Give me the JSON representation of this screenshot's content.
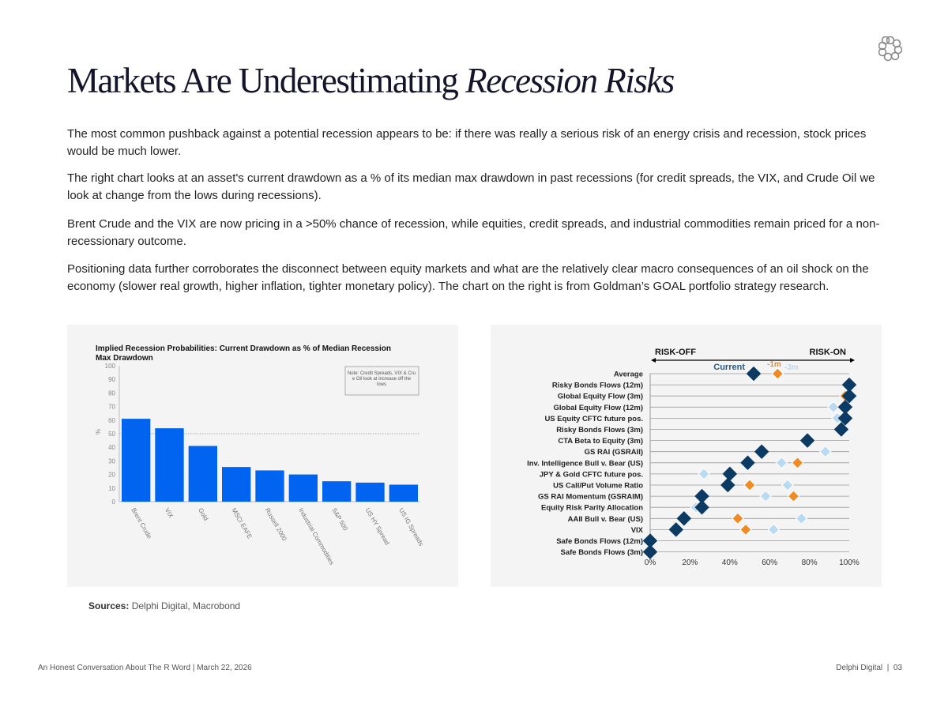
{
  "title": {
    "main": "Markets Are Underestimating",
    "italic": "Recession Risks"
  },
  "paragraphs": [
    "The most common pushback against a potential recession appears to be: if there was really a serious risk of an energy crisis and recession, stock prices would be much lower.",
    "The right chart looks at an asset's current drawdown as a % of its median max drawdown in past recessions (for credit spreads, the VIX, and Crude Oil we look at change from the lows during recessions).",
    "Brent Crude and the VIX are now pricing in a >50% chance of recession, while equities, credit spreads, and industrial commodities remain priced for a non-recessionary outcome.",
    "Positioning data further corroborates the disconnect between equity markets and what are the relatively clear macro consequences of an oil shock on the economy (slower real growth, higher inflation, tighter monetary policy).  The chart on the right is from Goldman’s GOAL portfolio strategy research."
  ],
  "sources": {
    "label": "Sources:",
    "text": " Delphi Digital, Macrobond"
  },
  "footer": {
    "left": "An Honest Conversation About The R Word | March 22, 2026",
    "brand": "Delphi Digital",
    "page": "03"
  },
  "logo_icon": "delphi-knot-logo",
  "chart_data": [
    {
      "type": "bar",
      "title": "Implied Recession Probabilities: Current Drawdown as % of Median Recession Max Drawdown",
      "ylabel": "%",
      "ylim": [
        0,
        100
      ],
      "yticks": [
        0,
        10,
        20,
        30,
        40,
        50,
        60,
        70,
        80,
        90,
        100
      ],
      "reference_line": 50,
      "note": "Note: Credit Spreads, VIX & Crude Oil look at increase off the lows",
      "categories": [
        "Brent Crude",
        "VIX",
        "Gold",
        "MSCI EAFE",
        "Russell 2000",
        "Industrial Commodities",
        "S&P 500",
        "US HY Spread",
        "US IG Spreads"
      ],
      "values": [
        61,
        54,
        41,
        25.5,
        23,
        20,
        15,
        14,
        12.5
      ],
      "color": "#0064f0"
    },
    {
      "type": "scatter",
      "left_label": "RISK-OFF",
      "right_label": "RISK-ON",
      "xlim": [
        0,
        100
      ],
      "xticks": [
        "0%",
        "20%",
        "40%",
        "60%",
        "80%",
        "100%"
      ],
      "categories": [
        "Average",
        "Risky Bonds Flows (12m)",
        "Global Equity Flow (3m)",
        "Global Equity Flow (12m)",
        "US Equity CFTC future pos.",
        "Risky Bonds Flows (3m)",
        "CTA Beta to Equity (3m)",
        "GS RAI (GSRAII)",
        "Inv. Intelligence Bull v. Bear (US)",
        "JPY & Gold CFTC future pos.",
        "US Call/Put Volume Ratio",
        "GS RAI Momentum (GSRAIM)",
        "Equity Risk Parity Allocation",
        "AAII Bull v. Bear (US)",
        "VIX",
        "Safe Bonds Flows (12m)",
        "Safe Bonds Flows (3m)"
      ],
      "series": [
        {
          "name": "-3m",
          "color": "#b9daf2",
          "values": [
            64,
            100,
            100,
            92,
            94,
            97,
            79,
            88,
            66,
            27,
            69,
            58,
            23,
            76,
            62,
            1,
            1
          ]
        },
        {
          "name": "-1m",
          "color": "#f08a24",
          "values": [
            64,
            100,
            98,
            98,
            98,
            97,
            80,
            56,
            74,
            40,
            50,
            72,
            25,
            44,
            48,
            0,
            0
          ]
        },
        {
          "name": "Current",
          "color": "#0b3a63",
          "values": [
            52,
            100,
            100,
            98,
            98,
            96,
            79,
            56,
            49,
            40,
            39,
            26,
            26,
            17,
            13,
            0,
            0
          ]
        }
      ]
    }
  ]
}
